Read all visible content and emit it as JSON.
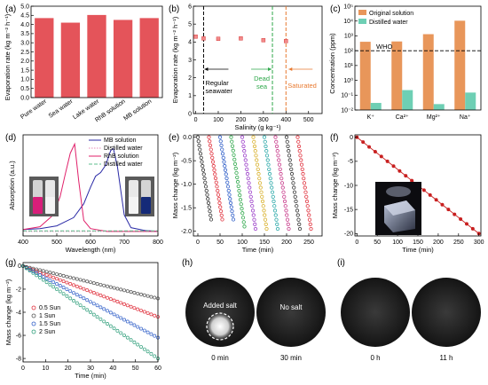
{
  "colors": {
    "bar_a": "#e4545a",
    "original_solution": "#e8965a",
    "distilled_water": "#6ecfb4",
    "mb_solution": "#2a2aa6",
    "distilled_pink": "#e889b8",
    "rhb_solution": "#e0206a",
    "distilled_green": "#5cbf8c",
    "sun05": "#e0303c",
    "sun1": "#555555",
    "sun15": "#2f5ec8",
    "sun2": "#2e9e7a",
    "e_series": [
      "#333333",
      "#e0303c",
      "#2f5ec8",
      "#2ea84a",
      "#9a3cc8",
      "#d8b02a",
      "#2aa8a8",
      "#c83a8a",
      "#333333",
      "#e0303c"
    ]
  },
  "chart_data": [
    {
      "panel": "(a)",
      "type": "bar",
      "ylabel": "Evaporation rate (kg m⁻² h⁻¹)",
      "ylim": [
        0,
        5
      ],
      "yticks": [
        "0.0",
        "0.5",
        "1.0",
        "1.5",
        "2.0",
        "2.5",
        "3.0",
        "3.5",
        "4.0",
        "4.5",
        "5.0"
      ],
      "categories": [
        "Pure water",
        "Sea water",
        "Lake water",
        "RhB solution",
        "MB solution"
      ],
      "values": [
        4.35,
        4.1,
        4.52,
        4.25,
        4.35
      ]
    },
    {
      "panel": "(b)",
      "type": "scatter",
      "xlabel": "Salinity (g kg⁻¹)",
      "ylabel": "Evaporation rate (kg m⁻² h⁻¹)",
      "xlim": [
        -10,
        560
      ],
      "ylim": [
        0,
        6
      ],
      "xticks": [
        "0",
        "100",
        "200",
        "300",
        "400",
        "500"
      ],
      "yticks": [
        "0",
        "1",
        "2",
        "3",
        "4",
        "5",
        "6"
      ],
      "x": [
        0,
        35,
        100,
        200,
        300,
        400
      ],
      "y": [
        4.3,
        4.2,
        4.18,
        4.2,
        4.1,
        4.05
      ],
      "vlines": [
        35,
        340,
        400
      ],
      "annotations": [
        "Regular seawater",
        "Dead sea",
        "Saturated"
      ]
    },
    {
      "panel": "(c)",
      "type": "bar",
      "ylabel": "Concentration (ppm)",
      "scale": "log",
      "ylim_exp": [
        -2,
        5
      ],
      "yticks": [
        "10⁻²",
        "10⁻¹",
        "10⁰",
        "10¹",
        "10²",
        "10³",
        "10⁴",
        "10⁵"
      ],
      "categories": [
        "K⁺",
        "Ca²⁺",
        "Mg²⁺",
        "Na⁺"
      ],
      "series": [
        {
          "name": "Original solution",
          "values": [
            400,
            420,
            1300,
            10500
          ]
        },
        {
          "name": "Distilled water",
          "values": [
            0.03,
            0.22,
            0.025,
            0.15
          ]
        }
      ],
      "hline": 100,
      "hline_label": "WHO"
    },
    {
      "panel": "(d)",
      "type": "line",
      "xlabel": "Wavelength (nm)",
      "ylabel": "Absorption (a.u.)",
      "xlim": [
        400,
        800
      ],
      "xticks": [
        "400",
        "500",
        "600",
        "700",
        "800"
      ],
      "series": [
        {
          "name": "MB solution",
          "x": [
            400,
            450,
            500,
            550,
            580,
            600,
            615,
            630,
            645,
            660,
            668,
            680,
            700,
            720,
            760,
            800
          ],
          "y": [
            0.02,
            0.03,
            0.06,
            0.15,
            0.3,
            0.48,
            0.6,
            0.64,
            0.72,
            0.88,
            0.9,
            0.7,
            0.18,
            0.04,
            0.01,
            0.0
          ]
        },
        {
          "name": "Distilled water",
          "x": [
            400,
            800
          ],
          "y": [
            0.0,
            0.0
          ]
        },
        {
          "name": "RhB solution",
          "x": [
            400,
            450,
            490,
            510,
            525,
            540,
            553,
            565,
            580,
            600,
            650,
            700,
            800
          ],
          "y": [
            0.02,
            0.05,
            0.18,
            0.38,
            0.62,
            0.85,
            0.95,
            0.55,
            0.12,
            0.03,
            0.0,
            0.0,
            0.0
          ]
        },
        {
          "name": "Distilled water",
          "x": [
            400,
            800
          ],
          "y": [
            0.0,
            0.0
          ]
        }
      ]
    },
    {
      "panel": "(e)",
      "type": "scatter",
      "xlabel": "Time (min)",
      "ylabel": "Mass change (kg m⁻²)",
      "xlim": [
        -10,
        280
      ],
      "ylim": [
        -2.1,
        0.05
      ],
      "xticks": [
        "0",
        "50",
        "100",
        "150",
        "200",
        "250"
      ],
      "yticks": [
        "0.0",
        "-0.5",
        "-1.0",
        "-1.5",
        "-2.0"
      ],
      "cycles_start_min": [
        0,
        25,
        50,
        75,
        100,
        125,
        150,
        175,
        200,
        225
      ],
      "cycle_duration_min": 30,
      "cycle_drop": [
        1.75,
        1.75,
        1.75,
        1.9,
        1.95,
        1.95,
        1.95,
        1.95,
        1.95,
        1.95
      ]
    },
    {
      "panel": "(f)",
      "type": "line",
      "xlabel": "Time (min)",
      "ylabel": "Mass change (kg m⁻²)",
      "xlim": [
        -5,
        305
      ],
      "ylim": [
        -20.5,
        0.5
      ],
      "xticks": [
        "0",
        "50",
        "100",
        "150",
        "200",
        "250",
        "300"
      ],
      "yticks": [
        "0",
        "-5",
        "-10",
        "-15",
        "-20"
      ],
      "x": [
        0,
        15,
        30,
        45,
        60,
        75,
        90,
        105,
        120,
        135,
        150,
        165,
        180,
        195,
        210,
        225,
        240,
        255,
        270,
        285,
        300
      ],
      "y": [
        0,
        -1,
        -2,
        -3,
        -4,
        -5,
        -6,
        -7,
        -8,
        -9,
        -10,
        -11,
        -12,
        -13,
        -14,
        -15,
        -16,
        -17,
        -18,
        -19,
        -20
      ]
    },
    {
      "panel": "(g)",
      "type": "scatter",
      "xlabel": "Time (min)",
      "ylabel": "Mass change (kg m⁻²)",
      "xlim": [
        0,
        60
      ],
      "ylim": [
        -8.3,
        0.3
      ],
      "xticks": [
        "0",
        "10",
        "20",
        "30",
        "40",
        "50",
        "60"
      ],
      "yticks": [
        "0",
        "-2",
        "-4",
        "-6",
        "-8"
      ],
      "series": [
        {
          "name": "0.5 Sun",
          "rate_per_min": 0.0733
        },
        {
          "name": "1 Sun",
          "rate_per_min": 0.0467
        },
        {
          "name": "1.5 Sun",
          "rate_per_min": 0.1033
        },
        {
          "name": "2 Sun",
          "rate_per_min": 0.1333
        }
      ]
    }
  ],
  "panel_labels": [
    "(a)",
    "(b)",
    "(c)",
    "(d)",
    "(e)",
    "(f)",
    "(g)",
    "(h)",
    "(i)"
  ],
  "photos": {
    "h_left_caption": "0 min",
    "h_right_caption": "30 min",
    "h_left_label": "Added salt",
    "h_right_label": "No salt",
    "i_left_caption": "0 h",
    "i_right_caption": "11 h"
  }
}
